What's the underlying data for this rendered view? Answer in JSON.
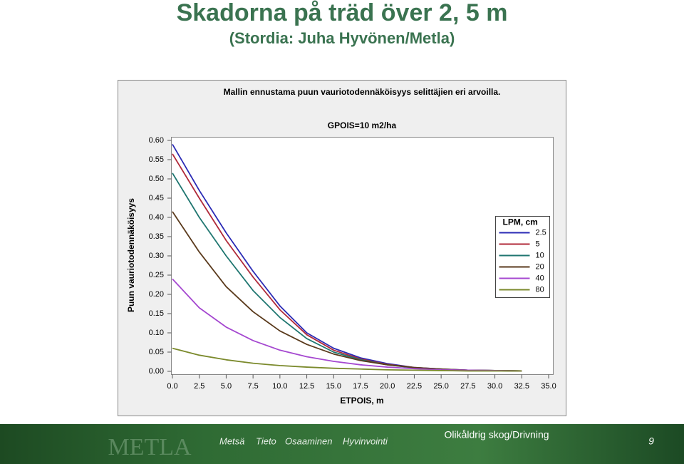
{
  "slide": {
    "title": "Skadorna på träd över 2, 5 m",
    "subtitle": "(Stordia: Juha Hyvönen/Metla)"
  },
  "chart_data": {
    "type": "line",
    "title": "Mallin ennustama puun vauriotodennäköisyys selittäjien eri arvoilla.",
    "subtitle": "GPOIS=10 m2/ha",
    "x_label": "ETPOIS, m",
    "y_label": "Puun vauriotodennäköisyys",
    "legend_title": "LPM, cm",
    "legend_position": "right",
    "x": [
      0,
      2.5,
      5,
      7.5,
      10,
      12.5,
      15,
      17.5,
      20,
      22.5,
      25,
      27.5,
      30,
      32.5
    ],
    "series": [
      {
        "name": "2.5",
        "color": "#2b2bb5",
        "values": [
          0.59,
          0.47,
          0.36,
          0.26,
          0.17,
          0.1,
          0.06,
          0.035,
          0.02,
          0.01,
          0.006,
          0.003,
          0.002,
          0.001
        ]
      },
      {
        "name": "5",
        "color": "#b02a3a",
        "values": [
          0.565,
          0.45,
          0.34,
          0.245,
          0.16,
          0.095,
          0.055,
          0.032,
          0.018,
          0.01,
          0.005,
          0.003,
          0.002,
          0.001
        ]
      },
      {
        "name": "10",
        "color": "#1f7670",
        "values": [
          0.515,
          0.4,
          0.3,
          0.21,
          0.14,
          0.085,
          0.05,
          0.03,
          0.017,
          0.009,
          0.005,
          0.003,
          0.002,
          0.001
        ]
      },
      {
        "name": "20",
        "color": "#5a3a1c",
        "values": [
          0.415,
          0.31,
          0.22,
          0.155,
          0.105,
          0.07,
          0.045,
          0.028,
          0.017,
          0.01,
          0.006,
          0.003,
          0.002,
          0.001
        ]
      },
      {
        "name": "40",
        "color": "#a548d0",
        "values": [
          0.24,
          0.165,
          0.115,
          0.08,
          0.055,
          0.038,
          0.026,
          0.017,
          0.011,
          0.007,
          0.004,
          0.003,
          0.002,
          0.001
        ]
      },
      {
        "name": "80",
        "color": "#7b8a2c",
        "values": [
          0.06,
          0.042,
          0.03,
          0.021,
          0.015,
          0.011,
          0.008,
          0.006,
          0.004,
          0.003,
          0.002,
          0.001,
          0.001,
          0.001
        ]
      }
    ],
    "xlim": [
      0,
      35
    ],
    "ylim": [
      0,
      0.6
    ],
    "xticks": [
      {
        "value": 0,
        "label": "0.0"
      },
      2.5,
      {
        "value": 5,
        "label": "5.0"
      },
      7.5,
      {
        "value": 10,
        "label": "10.0"
      },
      12.5,
      {
        "value": 15,
        "label": "15.0"
      },
      17.5,
      {
        "value": 20,
        "label": "20.0"
      },
      22.5,
      {
        "value": 25,
        "label": "25.0"
      },
      27.5,
      {
        "value": 30,
        "label": "30.0"
      },
      32.5,
      {
        "value": 35,
        "label": "35.0"
      }
    ],
    "yticks": [
      {
        "value": 0,
        "label": "0.00"
      },
      0.05,
      {
        "value": 0.1,
        "label": "0.10"
      },
      0.15,
      {
        "value": 0.2,
        "label": "0.20"
      },
      0.25,
      {
        "value": 0.3,
        "label": "0.30"
      },
      0.35,
      {
        "value": 0.4,
        "label": "0.40"
      },
      0.45,
      {
        "value": 0.5,
        "label": "0.50"
      },
      0.55,
      {
        "value": 0.6,
        "label": "0.60"
      }
    ],
    "grid": false
  },
  "footer": {
    "logo": "METLA",
    "words": [
      "Metsä",
      "Tieto",
      "Osaaminen",
      "Hyvinvointi"
    ],
    "section": "Olikåldrig skog/Drivning",
    "page": "9"
  }
}
